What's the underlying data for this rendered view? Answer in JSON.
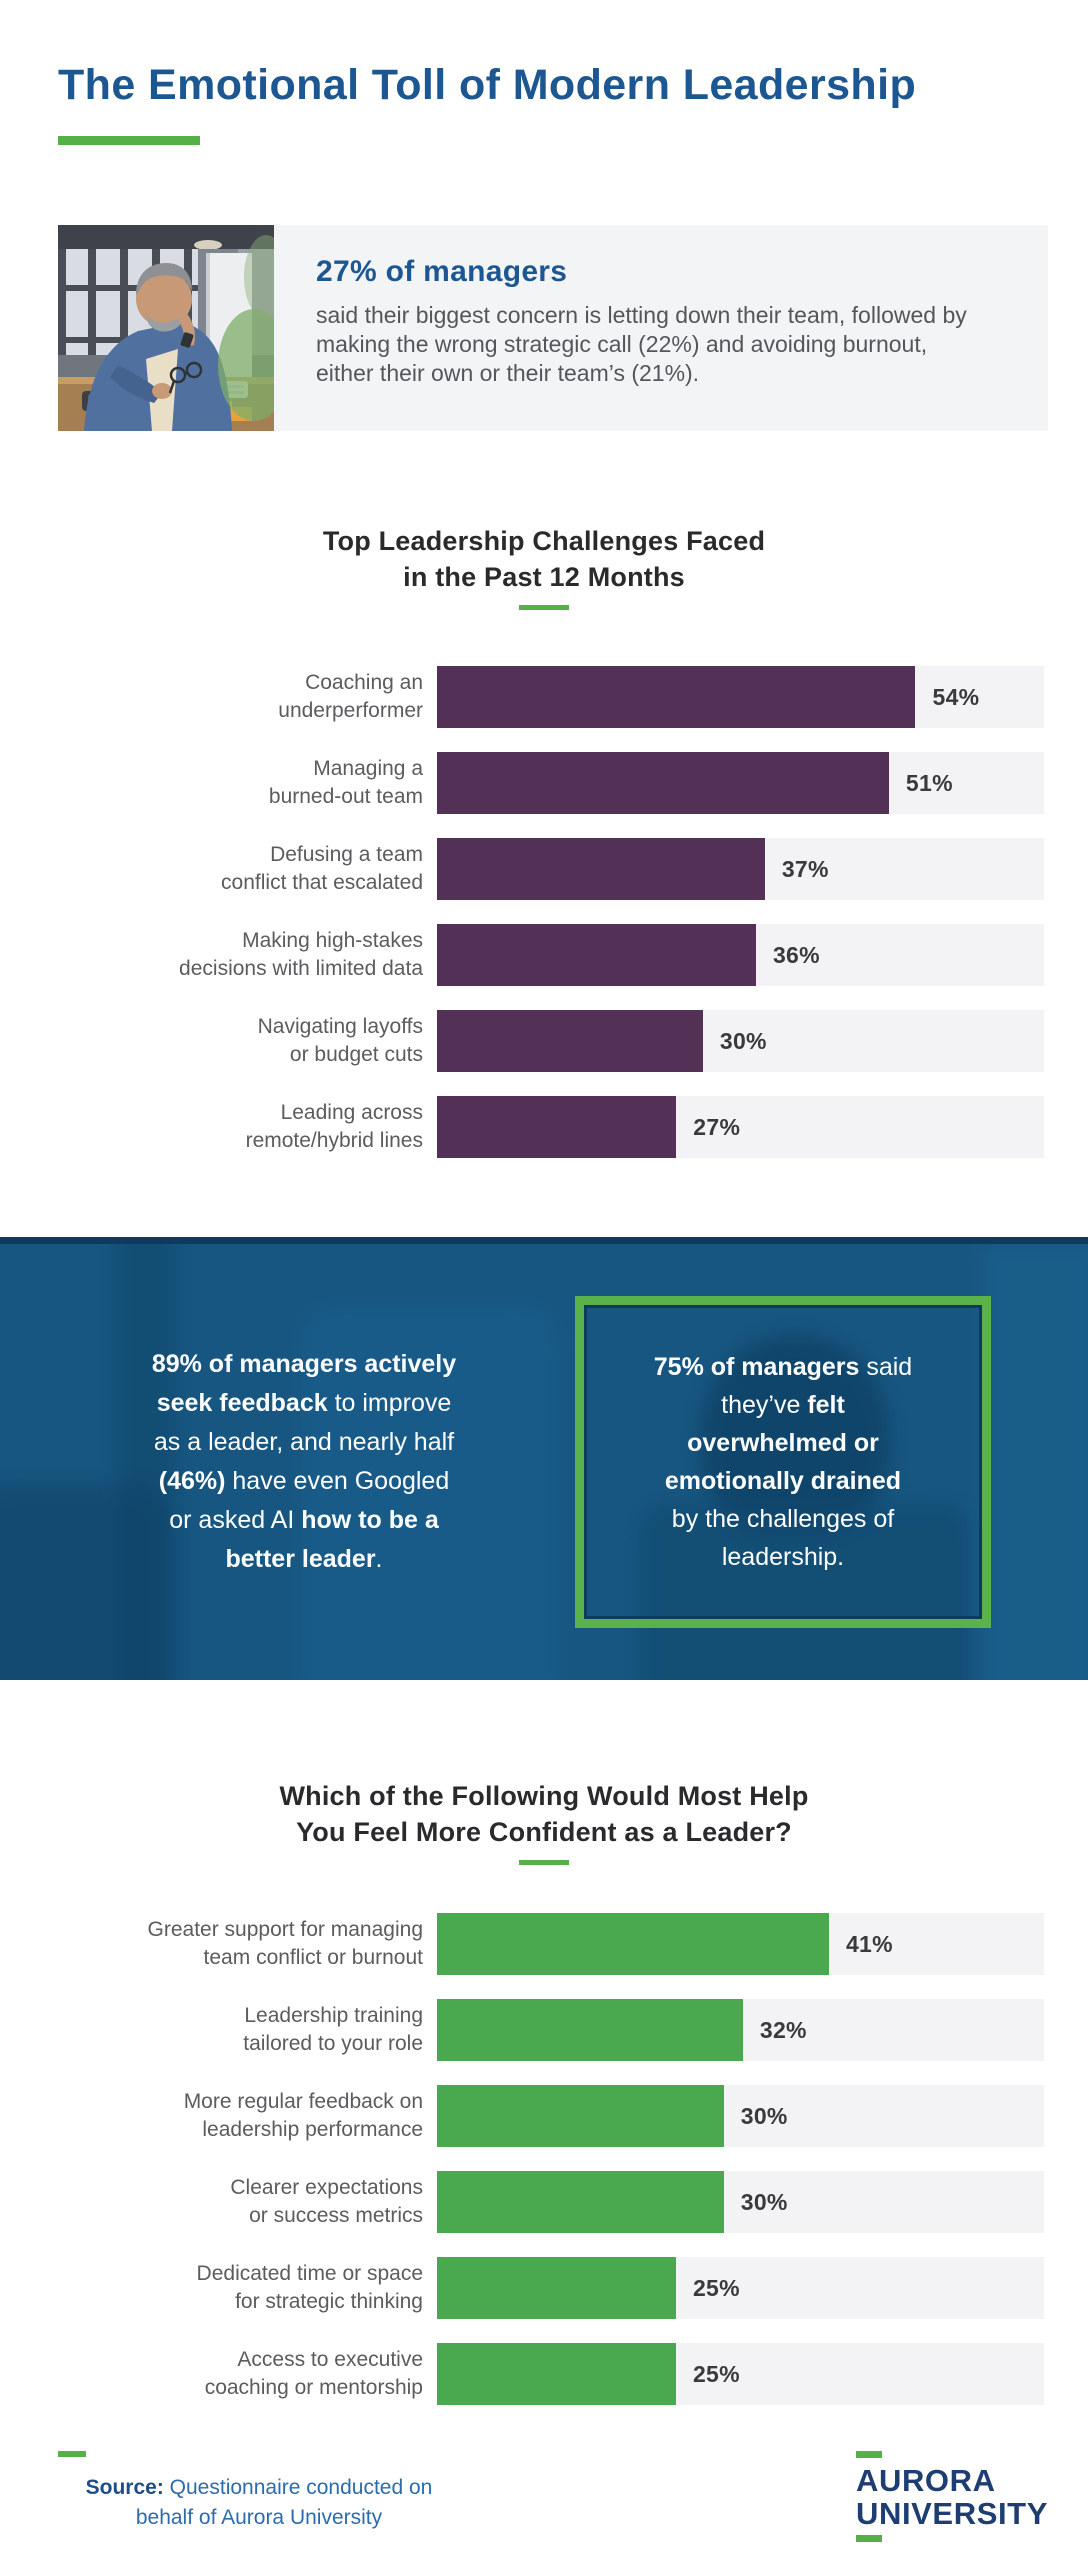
{
  "page_title": "The Emotional Toll of Modern Leadership",
  "colors": {
    "title_navy": "#1D5792",
    "accent_green": "#54B047",
    "box_border_green": "#5BB24A",
    "challenges_purple": "#533156",
    "confidence_green": "#4AA84E",
    "band_blue": "#175680",
    "track_gray": "#F3F3F5",
    "body_gray": "#55565A",
    "logo_navy": "#1E3E73",
    "source_blue": "#2C6CAE"
  },
  "hero_stat": {
    "image_name": "stressed-manager-photo",
    "headline": "27% of managers",
    "body": "said their biggest concern is letting down their team, followed by making the wrong strategic call (22%) and avoiding burnout, either their own or their team’s (21%)."
  },
  "chart_data": [
    {
      "type": "bar",
      "orientation": "horizontal",
      "title": "Top Leadership Challenges Faced\nin the Past 12 Months",
      "categories": [
        "Coaching an\nunderperformer",
        "Managing a\nburned-out team",
        "Defusing a team\nconflict that escalated",
        "Making high-stakes\ndecisions with limited data",
        "Navigating layoffs\nor budget cuts",
        "Leading across\nremote/hybrid lines"
      ],
      "values": [
        54,
        51,
        37,
        36,
        30,
        27
      ],
      "value_labels": [
        "54%",
        "51%",
        "37%",
        "36%",
        "30%",
        "27%"
      ],
      "xlim": [
        0,
        68.5
      ],
      "grid": false,
      "legend": false,
      "bar_color": "#533156",
      "track_color": "#F3F3F5"
    },
    {
      "type": "bar",
      "orientation": "horizontal",
      "title": "Which of the Following Would Most Help\nYou Feel More Confident as a Leader?",
      "categories": [
        "Greater support for managing\nteam conflict or burnout",
        "Leadership training\ntailored to your role",
        "More regular feedback on\nleadership performance",
        "Clearer expectations\nor success metrics",
        "Dedicated time or space\nfor strategic thinking",
        "Access to executive\ncoaching or mentorship"
      ],
      "values": [
        41,
        32,
        30,
        30,
        25,
        25
      ],
      "value_labels": [
        "41%",
        "32%",
        "30%",
        "30%",
        "25%",
        "25%"
      ],
      "xlim": [
        0,
        63.5
      ],
      "grid": false,
      "legend": false,
      "bar_color": "#4AA84E",
      "track_color": "#F3F3F5"
    }
  ],
  "callout_section": {
    "left_stat": {
      "lines": [
        [
          {
            "t": "89% of managers actively",
            "b": true
          }
        ],
        [
          {
            "t": "seek feedback",
            "b": true
          },
          {
            "t": " to improve",
            "b": false
          }
        ],
        [
          {
            "t": "as a leader, and nearly half",
            "b": false
          }
        ],
        [
          {
            "t": "(46%)",
            "b": true
          },
          {
            "t": " have even Googled",
            "b": false
          }
        ],
        [
          {
            "t": "or asked AI ",
            "b": false
          },
          {
            "t": "how to be a",
            "b": true
          }
        ],
        [
          {
            "t": "better leader",
            "b": true
          },
          {
            "t": ".",
            "b": false
          }
        ]
      ]
    },
    "boxed_stat": {
      "lines": [
        [
          {
            "t": "75% of managers",
            "b": true
          },
          {
            "t": " said",
            "b": false
          }
        ],
        [
          {
            "t": "they’ve ",
            "b": false
          },
          {
            "t": "felt",
            "b": true
          }
        ],
        [
          {
            "t": "overwhelmed or",
            "b": true
          }
        ],
        [
          {
            "t": "emotionally drained",
            "b": true
          }
        ],
        [
          {
            "t": "by the challenges of",
            "b": false
          }
        ],
        [
          {
            "t": "leadership.",
            "b": false
          }
        ]
      ]
    }
  },
  "footer": {
    "source_label": "Source:",
    "source_text": " Questionnaire conducted on behalf of Aurora University",
    "logo_line1": "AURORA",
    "logo_line2": "UNIVERSITY"
  }
}
